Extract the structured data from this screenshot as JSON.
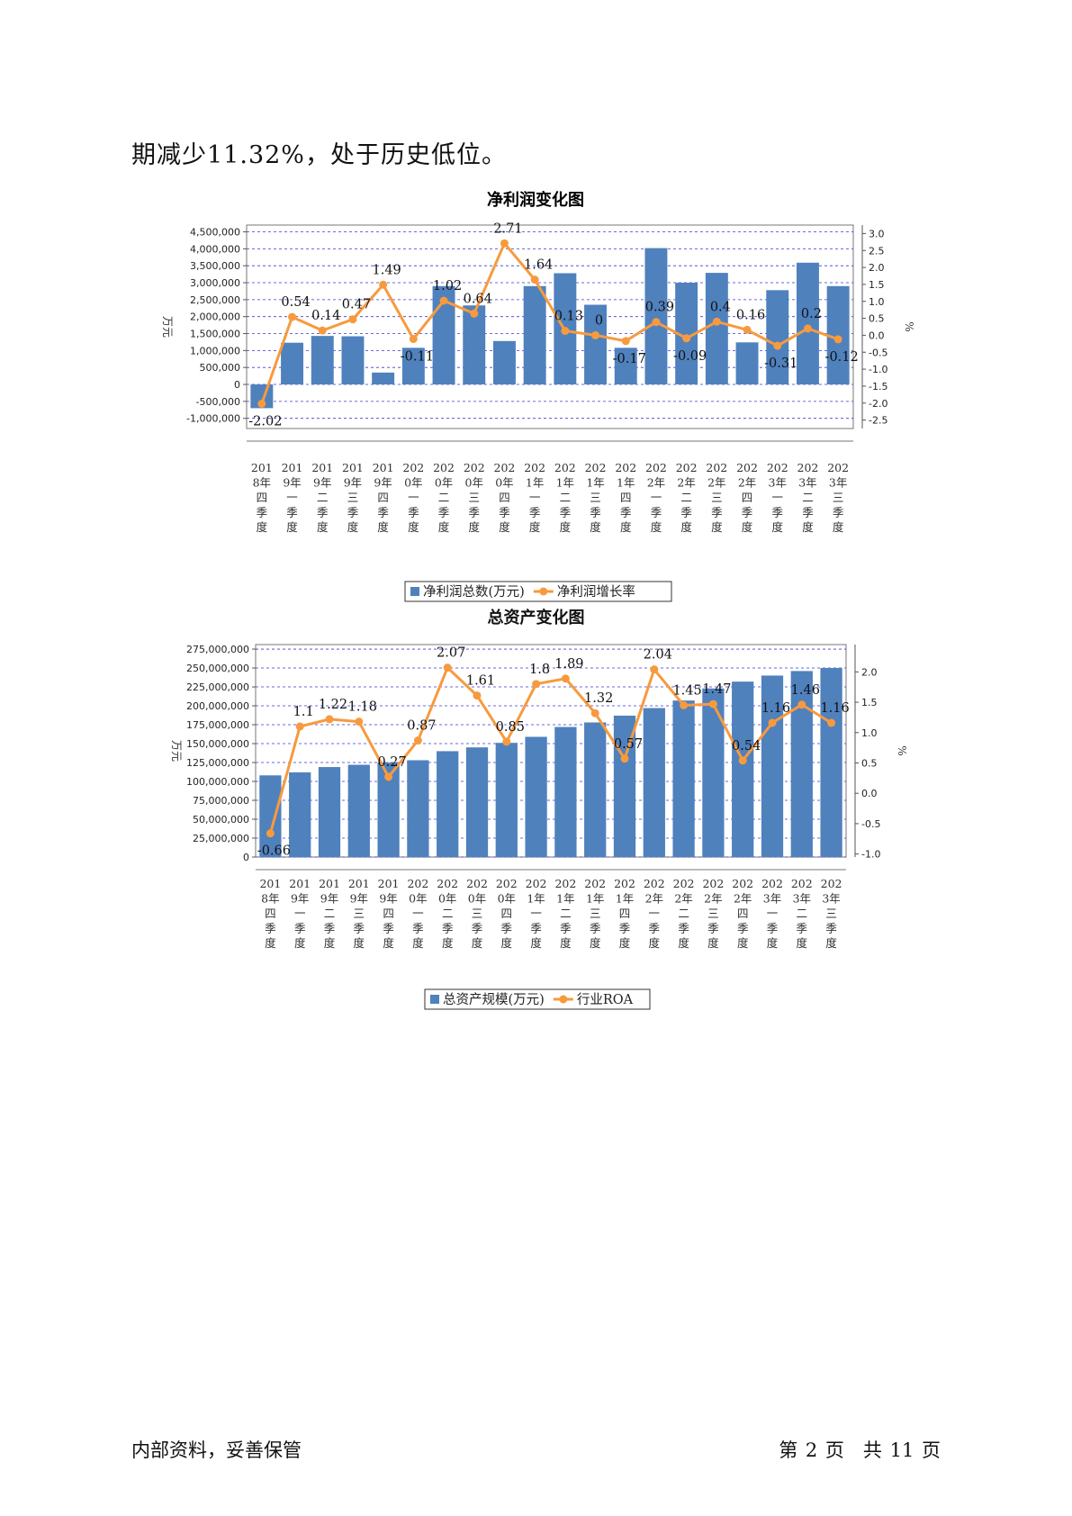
{
  "intro_text": "期减少11.32%，处于历史低位。",
  "footer": {
    "left": "内部资料，妥善保管",
    "right": "第 2 页　共 11 页"
  },
  "colors": {
    "bar": "#4f81bd",
    "line": "#f79a3e",
    "grid": "#3a3ad6"
  },
  "chart_data": [
    {
      "type": "bar+line",
      "title": "净利润变化图",
      "categories": [
        "2018年四季度",
        "2019年一季度",
        "2019年二季度",
        "2019年三季度",
        "2019年四季度",
        "2020年一季度",
        "2020年二季度",
        "2020年三季度",
        "2020年四季度",
        "2021年一季度",
        "2021年二季度",
        "2021年三季度",
        "2021年四季度",
        "2022年一季度",
        "2022年二季度",
        "2022年三季度",
        "2022年四季度",
        "2023年一季度",
        "2023年二季度",
        "2023年三季度"
      ],
      "category_lines": [
        [
          "201",
          "8年",
          "四",
          "季",
          "度"
        ],
        [
          "201",
          "9年",
          "一",
          "季",
          "度"
        ],
        [
          "201",
          "9年",
          "二",
          "季",
          "度"
        ],
        [
          "201",
          "9年",
          "三",
          "季",
          "度"
        ],
        [
          "201",
          "9年",
          "四",
          "季",
          "度"
        ],
        [
          "202",
          "0年",
          "一",
          "季",
          "度"
        ],
        [
          "202",
          "0年",
          "二",
          "季",
          "度"
        ],
        [
          "202",
          "0年",
          "三",
          "季",
          "度"
        ],
        [
          "202",
          "0年",
          "四",
          "季",
          "度"
        ],
        [
          "202",
          "1年",
          "一",
          "季",
          "度"
        ],
        [
          "202",
          "1年",
          "二",
          "季",
          "度"
        ],
        [
          "202",
          "1年",
          "三",
          "季",
          "度"
        ],
        [
          "202",
          "1年",
          "四",
          "季",
          "度"
        ],
        [
          "202",
          "2年",
          "一",
          "季",
          "度"
        ],
        [
          "202",
          "2年",
          "二",
          "季",
          "度"
        ],
        [
          "202",
          "2年",
          "三",
          "季",
          "度"
        ],
        [
          "202",
          "2年",
          "四",
          "季",
          "度"
        ],
        [
          "202",
          "3年",
          "一",
          "季",
          "度"
        ],
        [
          "202",
          "3年",
          "二",
          "季",
          "度"
        ],
        [
          "202",
          "3年",
          "三",
          "季",
          "度"
        ]
      ],
      "series": [
        {
          "name": "净利润总数(万元)",
          "kind": "bar",
          "axis": "left",
          "values": [
            -700000,
            1230000,
            1430000,
            1420000,
            350000,
            1080000,
            2900000,
            2330000,
            1280000,
            2900000,
            3280000,
            2350000,
            1080000,
            4020000,
            3000000,
            3290000,
            1240000,
            2780000,
            3590000,
            2900000
          ]
        },
        {
          "name": "净利润增长率",
          "kind": "line",
          "axis": "right",
          "values": [
            -2.02,
            0.54,
            0.14,
            0.47,
            1.49,
            -0.11,
            1.02,
            0.64,
            2.71,
            1.64,
            0.13,
            0,
            -0.17,
            0.39,
            -0.09,
            0.4,
            0.16,
            -0.31,
            0.2,
            -0.12
          ],
          "labels": [
            "-2.02",
            "0.54",
            "0.14",
            "0.47",
            "1.49",
            "-0.11",
            "1.02",
            "0.64",
            "2.71",
            "1.64",
            "0.13",
            "0",
            "-0.17",
            "0.39",
            "-0.09",
            "0.4",
            "0.16",
            "-0.31",
            "0.2",
            "-0.12"
          ]
        }
      ],
      "ylabel_left": "万元",
      "ylabel_right": "%",
      "left_ticks": [
        "4,500,000",
        "4,000,000",
        "3,500,000",
        "3,000,000",
        "2,500,000",
        "2,000,000",
        "1,500,000",
        "1,000,000",
        "500,000",
        "0",
        "-500,000",
        "-1,000,000"
      ],
      "right_ticks": [
        "3.0",
        "2.5",
        "2.0",
        "1.5",
        "1.0",
        "0.5",
        "0.0",
        "-0.5",
        "-1.0",
        "-1.5",
        "-2.0",
        "-2.5"
      ],
      "ylim_left": [
        -1300000,
        4700000
      ],
      "ylim_right": [
        -2.75,
        3.25
      ],
      "grid": true,
      "legend_position": "bottom"
    },
    {
      "type": "bar+line",
      "title": "总资产变化图",
      "categories": [
        "2018年四季度",
        "2019年一季度",
        "2019年二季度",
        "2019年三季度",
        "2019年四季度",
        "2020年一季度",
        "2020年二季度",
        "2020年三季度",
        "2020年四季度",
        "2021年一季度",
        "2021年二季度",
        "2021年三季度",
        "2021年四季度",
        "2022年一季度",
        "2022年二季度",
        "2022年三季度",
        "2022年四季度",
        "2023年一季度",
        "2023年二季度",
        "2023年三季度"
      ],
      "category_lines": [
        [
          "201",
          "8年",
          "四",
          "季",
          "度"
        ],
        [
          "201",
          "9年",
          "一",
          "季",
          "度"
        ],
        [
          "201",
          "9年",
          "二",
          "季",
          "度"
        ],
        [
          "201",
          "9年",
          "三",
          "季",
          "度"
        ],
        [
          "201",
          "9年",
          "四",
          "季",
          "度"
        ],
        [
          "202",
          "0年",
          "一",
          "季",
          "度"
        ],
        [
          "202",
          "0年",
          "二",
          "季",
          "度"
        ],
        [
          "202",
          "0年",
          "三",
          "季",
          "度"
        ],
        [
          "202",
          "0年",
          "四",
          "季",
          "度"
        ],
        [
          "202",
          "1年",
          "一",
          "季",
          "度"
        ],
        [
          "202",
          "1年",
          "二",
          "季",
          "度"
        ],
        [
          "202",
          "1年",
          "三",
          "季",
          "度"
        ],
        [
          "202",
          "1年",
          "四",
          "季",
          "度"
        ],
        [
          "202",
          "2年",
          "一",
          "季",
          "度"
        ],
        [
          "202",
          "2年",
          "二",
          "季",
          "度"
        ],
        [
          "202",
          "2年",
          "三",
          "季",
          "度"
        ],
        [
          "202",
          "2年",
          "四",
          "季",
          "度"
        ],
        [
          "202",
          "3年",
          "一",
          "季",
          "度"
        ],
        [
          "202",
          "3年",
          "二",
          "季",
          "度"
        ],
        [
          "202",
          "3年",
          "三",
          "季",
          "度"
        ]
      ],
      "series": [
        {
          "name": "总资产规模(万元)",
          "kind": "bar",
          "axis": "left",
          "values": [
            108000000,
            112000000,
            119000000,
            122000000,
            125000000,
            128000000,
            140000000,
            145000000,
            151000000,
            159000000,
            172000000,
            178000000,
            187000000,
            197000000,
            207000000,
            223000000,
            232000000,
            240000000,
            246000000,
            250000000
          ]
        },
        {
          "name": "行业ROA",
          "kind": "line",
          "axis": "right",
          "values": [
            -0.66,
            1.1,
            1.22,
            1.18,
            0.27,
            0.87,
            2.07,
            1.61,
            0.85,
            1.8,
            1.89,
            1.32,
            0.57,
            2.04,
            1.45,
            1.47,
            0.54,
            1.16,
            1.46,
            1.16
          ],
          "labels": [
            "-0.66",
            "1.1",
            "1.22",
            "1.18",
            "0.27",
            "0.87",
            "2.07",
            "1.61",
            "0.85",
            "1.8",
            "1.89",
            "1.32",
            "0.57",
            "2.04",
            "1.45",
            "1.47",
            "0.54",
            "1.16",
            "1.46",
            "1.16"
          ]
        }
      ],
      "ylabel_left": "万元",
      "ylabel_right": "%",
      "left_ticks": [
        "275,000,000",
        "250,000,000",
        "225,000,000",
        "200,000,000",
        "175,000,000",
        "150,000,000",
        "125,000,000",
        "100,000,000",
        "75,000,000",
        "50,000,000",
        "25,000,000",
        "0"
      ],
      "right_ticks": [
        "2.0",
        "1.5",
        "1.0",
        "0.5",
        "0.0",
        "-0.5",
        "-1.0"
      ],
      "ylim_left": [
        0,
        281000000
      ],
      "ylim_right": [
        -1.05,
        2.45
      ],
      "grid": true,
      "legend_position": "bottom"
    }
  ]
}
